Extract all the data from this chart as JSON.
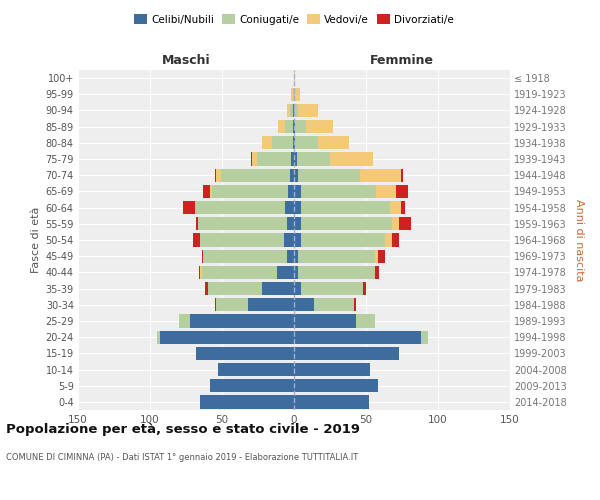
{
  "age_groups": [
    "0-4",
    "5-9",
    "10-14",
    "15-19",
    "20-24",
    "25-29",
    "30-34",
    "35-39",
    "40-44",
    "45-49",
    "50-54",
    "55-59",
    "60-64",
    "65-69",
    "70-74",
    "75-79",
    "80-84",
    "85-89",
    "90-94",
    "95-99",
    "100+"
  ],
  "birth_years": [
    "2014-2018",
    "2009-2013",
    "2004-2008",
    "1999-2003",
    "1994-1998",
    "1989-1993",
    "1984-1988",
    "1979-1983",
    "1974-1978",
    "1969-1973",
    "1964-1968",
    "1959-1963",
    "1954-1958",
    "1949-1953",
    "1944-1948",
    "1939-1943",
    "1934-1938",
    "1929-1933",
    "1924-1928",
    "1919-1923",
    "≤ 1918"
  ],
  "maschi": {
    "celibi": [
      65,
      58,
      53,
      68,
      93,
      72,
      32,
      22,
      12,
      5,
      7,
      5,
      6,
      4,
      3,
      2,
      1,
      1,
      1,
      0,
      0
    ],
    "coniugati": [
      0,
      0,
      0,
      0,
      2,
      8,
      22,
      38,
      52,
      58,
      58,
      62,
      63,
      53,
      48,
      24,
      14,
      5,
      2,
      1,
      0
    ],
    "vedovi": [
      0,
      0,
      0,
      0,
      0,
      0,
      0,
      0,
      1,
      0,
      0,
      0,
      0,
      1,
      3,
      3,
      7,
      5,
      2,
      1,
      0
    ],
    "divorziati": [
      0,
      0,
      0,
      0,
      0,
      0,
      1,
      2,
      1,
      1,
      5,
      1,
      8,
      5,
      1,
      1,
      0,
      0,
      0,
      0,
      0
    ]
  },
  "femmine": {
    "nubili": [
      52,
      58,
      53,
      73,
      88,
      43,
      14,
      5,
      3,
      3,
      5,
      5,
      5,
      5,
      3,
      2,
      1,
      1,
      0,
      0,
      0
    ],
    "coniugate": [
      0,
      0,
      0,
      0,
      5,
      13,
      28,
      43,
      53,
      53,
      58,
      63,
      62,
      52,
      43,
      23,
      16,
      7,
      3,
      1,
      0
    ],
    "vedove": [
      0,
      0,
      0,
      0,
      0,
      0,
      0,
      0,
      0,
      2,
      5,
      5,
      7,
      14,
      28,
      30,
      21,
      19,
      14,
      3,
      1
    ],
    "divorziate": [
      0,
      0,
      0,
      0,
      0,
      0,
      1,
      2,
      3,
      5,
      5,
      8,
      3,
      8,
      2,
      0,
      0,
      0,
      0,
      0,
      0
    ]
  },
  "colors": {
    "celibi": "#3d6d9e",
    "coniugati": "#b5cfa0",
    "vedovi": "#f5c97a",
    "divorziati": "#cc2222"
  },
  "xlim": 150,
  "title": "Popolazione per età, sesso e stato civile - 2019",
  "subtitle": "COMUNE DI CIMINNA (PA) - Dati ISTAT 1° gennaio 2019 - Elaborazione TUTTITALIA.IT",
  "ylabel_left": "Fasce di età",
  "ylabel_right": "Anni di nascita",
  "legend_labels": [
    "Celibi/Nubili",
    "Coniugati/e",
    "Vedovi/e",
    "Divorziati/e"
  ],
  "maschi_label": "Maschi",
  "femmine_label": "Femmine",
  "bg_color": "#ffffff",
  "plot_bg": "#eeeeee"
}
